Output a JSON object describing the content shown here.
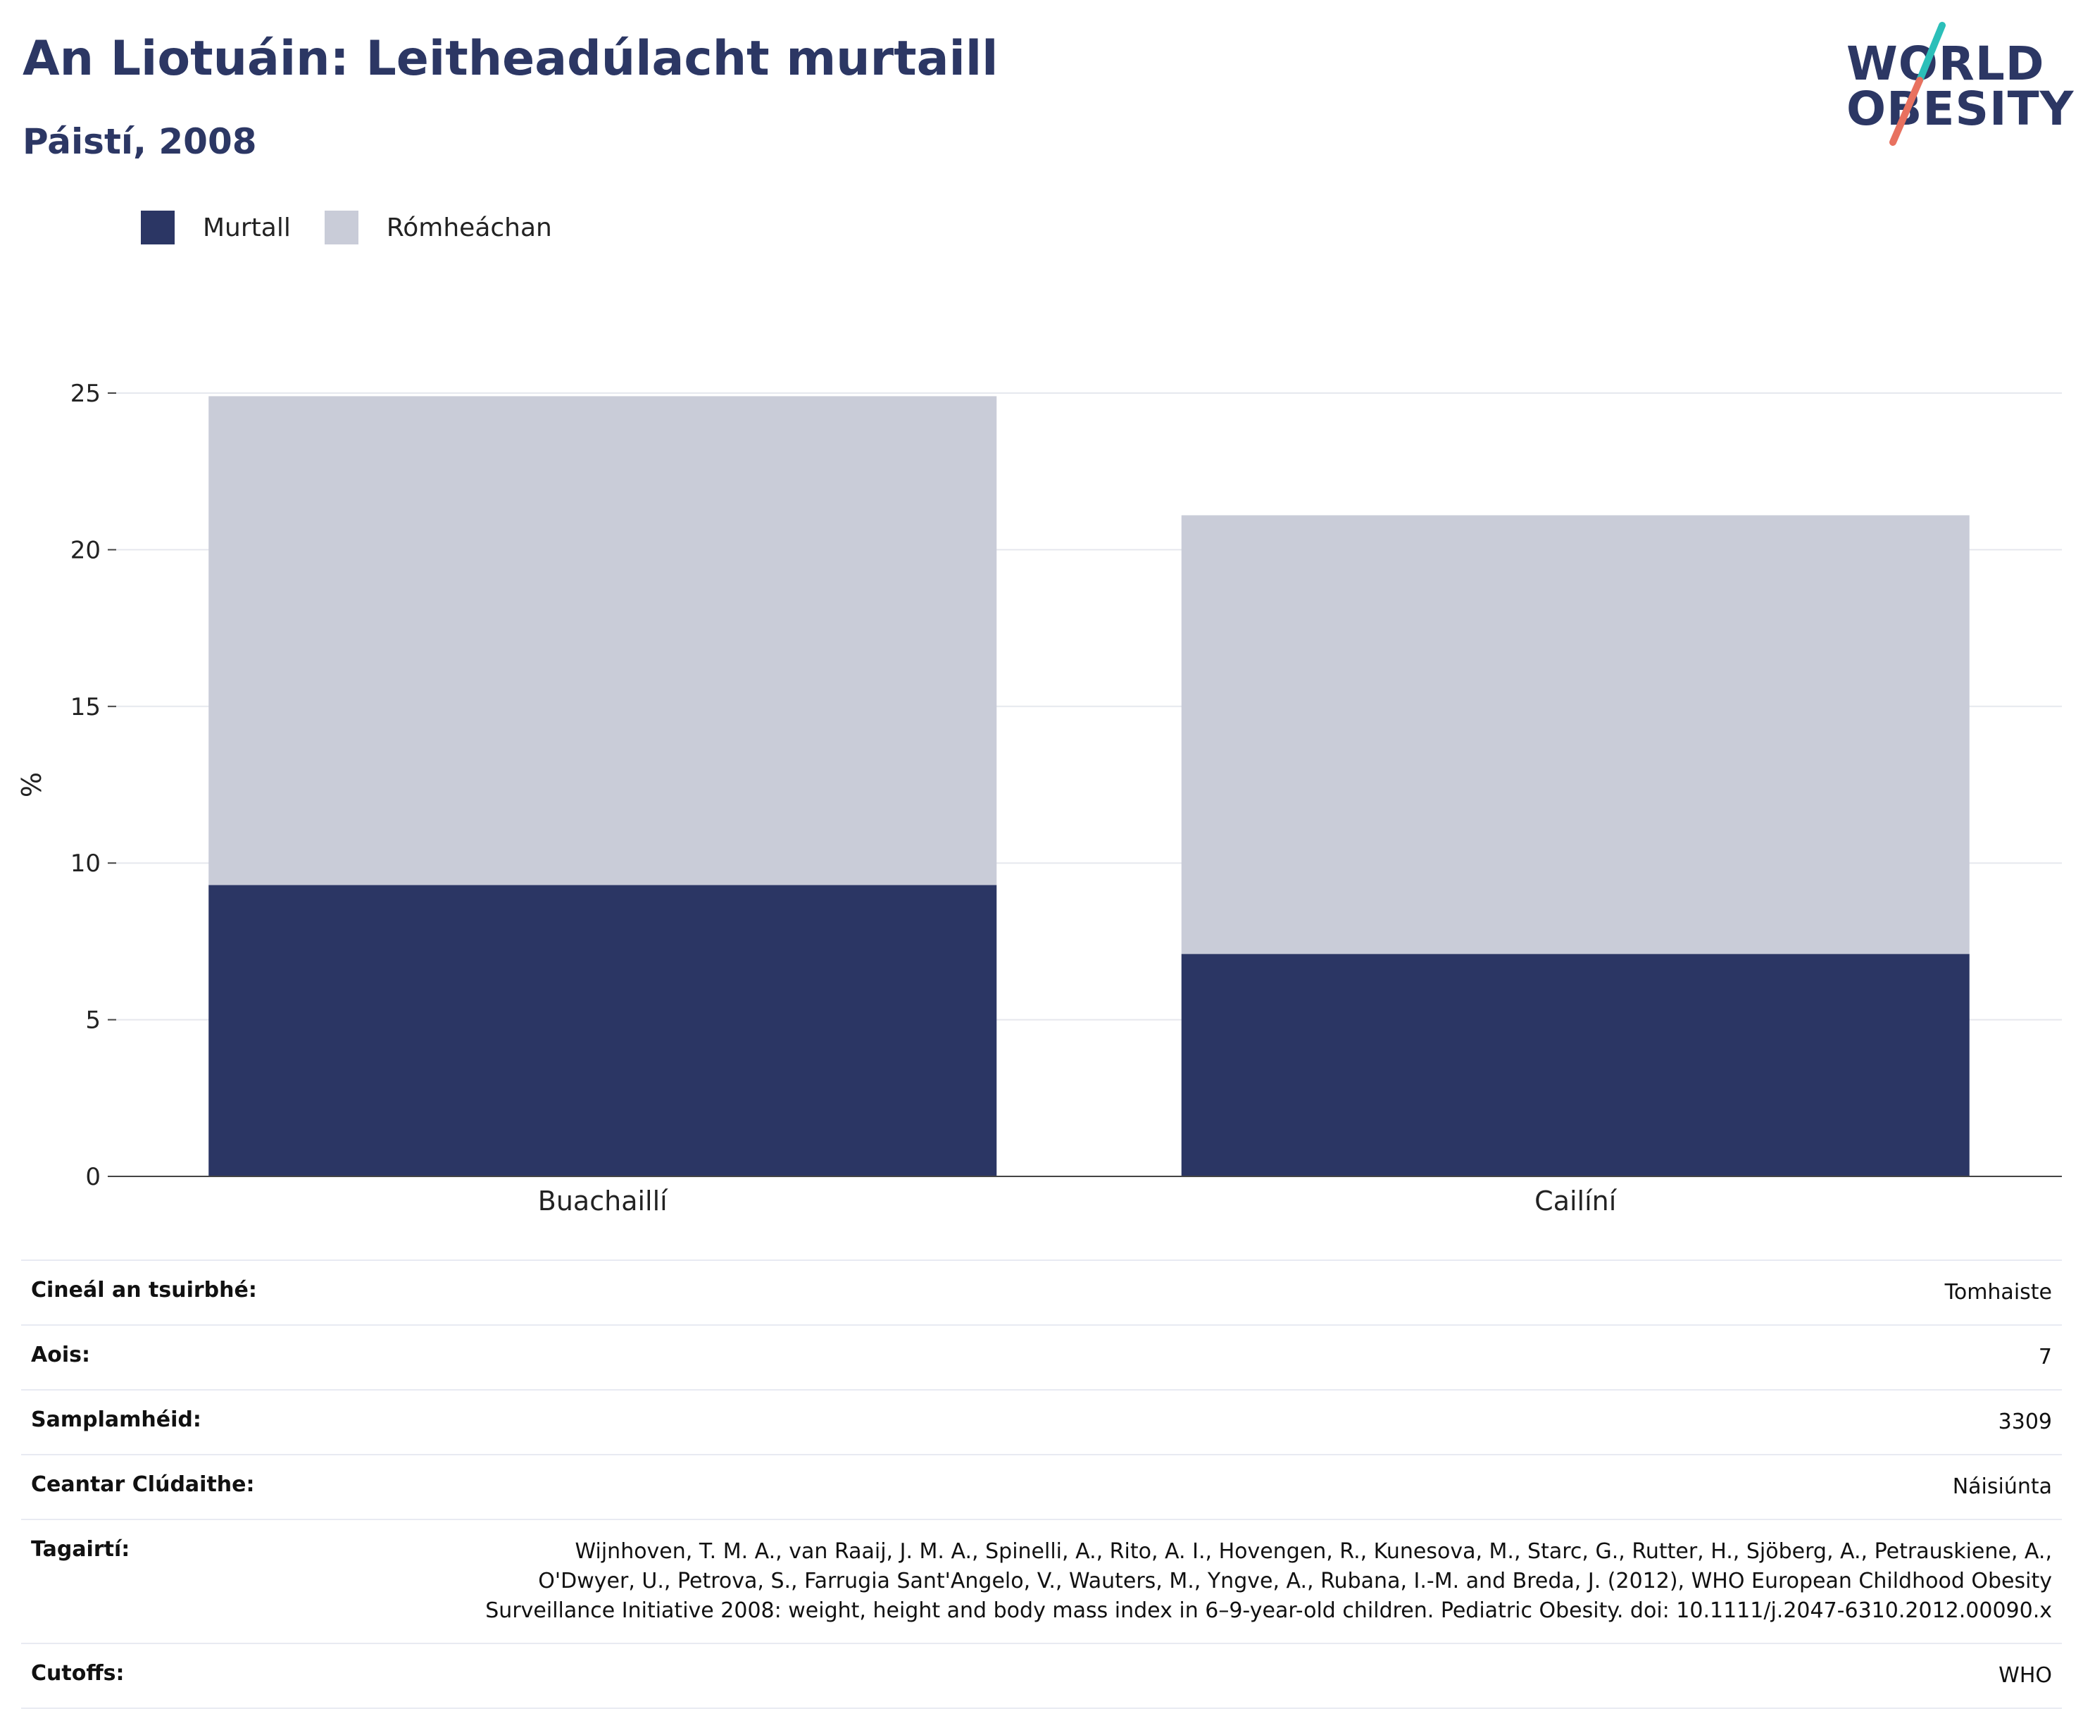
{
  "header": {
    "title": "An Liotuáin: Leitheadúlacht murtaill",
    "subtitle": "Páistí, 2008"
  },
  "logo": {
    "line1": "WORLD",
    "line2": "OBESITY",
    "colors": {
      "text": "#2c3764",
      "slash_top": "#2bbfb9",
      "slash_bottom": "#e8715f"
    }
  },
  "chart_data": {
    "type": "bar",
    "stacked": true,
    "categories": [
      "Buachaillí",
      "Cailíní"
    ],
    "series": [
      {
        "name": "Murtall",
        "values": [
          9.3,
          7.1
        ],
        "color": "#2b3664"
      },
      {
        "name": "Rómheáchan",
        "values": [
          15.6,
          14.0
        ],
        "color": "#c9ccd8"
      }
    ],
    "ylabel": "%",
    "xlabel": "",
    "ylim": [
      0,
      25
    ],
    "yticks": [
      0,
      5,
      10,
      15,
      20,
      25
    ],
    "grid": true,
    "legend_position": "top-left"
  },
  "info_table": [
    {
      "label": "Cineál an tsuirbhé:",
      "value": "Tomhaiste"
    },
    {
      "label": "Aois:",
      "value": "7"
    },
    {
      "label": "Samplamhéid:",
      "value": "3309"
    },
    {
      "label": "Ceantar Clúdaithe:",
      "value": "Náisiúnta"
    },
    {
      "label": "Tagairtí:",
      "value": "Wijnhoven, T. M. A., van Raaij, J. M. A., Spinelli, A., Rito, A. I., Hovengen, R., Kunesova, M., Starc, G., Rutter, H., Sjöberg, A., Petrauskiene, A., O'Dwyer, U., Petrova, S., Farrugia Sant'Angelo, V., Wauters, M., Yngve, A., Rubana, I.-M. and Breda, J. (2012), WHO European Childhood Obesity Surveillance Initiative 2008: weight, height and body mass index in 6–9-year-old children. Pediatric Obesity. doi: 10.1111/j.2047-6310.2012.00090.x"
    },
    {
      "label": "Cutoffs:",
      "value": "WHO"
    }
  ]
}
